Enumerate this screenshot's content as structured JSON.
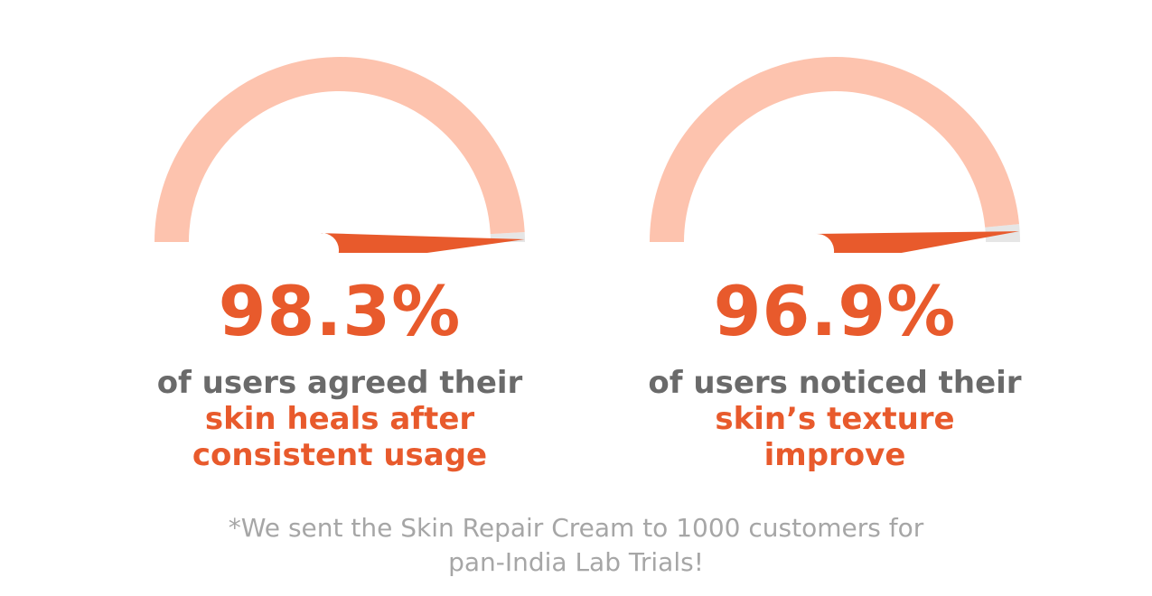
{
  "colors": {
    "track": "#fdc3ae",
    "remainder": "#e6e6e6",
    "accent": "#e85a2c",
    "caption_gray": "#6a6a6a",
    "footnote_gray": "#a6a6a6"
  },
  "chart_data": [
    {
      "type": "gauge",
      "value": 98.3,
      "max": 100,
      "value_label": "98.3%",
      "caption_line_1": "of users agreed their",
      "caption_line_2": "skin heals after",
      "caption_line_3": "consistent usage"
    },
    {
      "type": "gauge",
      "value": 96.9,
      "max": 100,
      "value_label": "96.9%",
      "caption_line_1": "of users noticed their",
      "caption_line_2": "skin’s texture",
      "caption_line_3": "improve"
    }
  ],
  "footnote": {
    "line_1": "*We sent the Skin Repair Cream to 1000 customers for",
    "line_2": "pan-India Lab Trials!"
  }
}
